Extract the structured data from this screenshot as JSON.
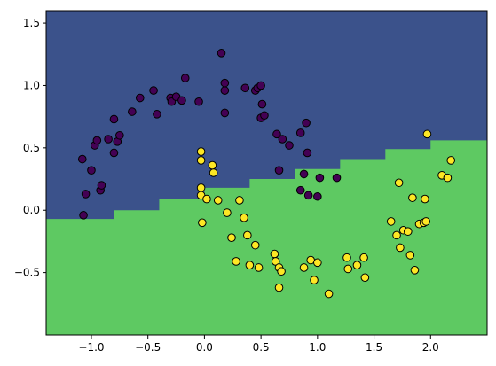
{
  "chart_data": {
    "type": "scatter",
    "title": "",
    "xlabel": "",
    "ylabel": "",
    "xlim": [
      -1.4,
      2.5
    ],
    "ylim": [
      -1.0,
      1.6
    ],
    "x_ticks": [
      -1.0,
      -0.5,
      0.0,
      0.5,
      1.0,
      1.5,
      2.0
    ],
    "x_tick_labels": [
      "−1.0",
      "−0.5",
      "0.0",
      "0.5",
      "1.0",
      "1.5",
      "2.0"
    ],
    "y_ticks": [
      -0.5,
      0.0,
      0.5,
      1.0,
      1.5
    ],
    "y_tick_labels": [
      "−0.5",
      "0.0",
      "0.5",
      "1.0",
      "1.5"
    ],
    "grid": false,
    "legend": "none",
    "decision_regions": {
      "description_of_boundary": "stepped line separating two class regions",
      "boundary": [
        [
          -1.4,
          -0.07
        ],
        [
          -1.1,
          -0.07
        ],
        [
          -0.8,
          0.0
        ],
        [
          -0.4,
          0.09
        ],
        [
          0.0,
          0.18
        ],
        [
          0.4,
          0.25
        ],
        [
          0.8,
          0.33
        ],
        [
          1.2,
          0.41
        ],
        [
          1.6,
          0.49
        ],
        [
          2.0,
          0.56
        ],
        [
          2.5,
          0.62
        ]
      ],
      "upper_color": "#3b528b",
      "lower_color": "#5ec962"
    },
    "series": [
      {
        "color": "#440154",
        "points": [
          [
            -1.08,
            0.41
          ],
          [
            -1.05,
            0.13
          ],
          [
            -1.07,
            -0.04
          ],
          [
            -1.0,
            0.32
          ],
          [
            -0.97,
            0.52
          ],
          [
            -0.95,
            0.56
          ],
          [
            -0.92,
            0.16
          ],
          [
            -0.91,
            0.2
          ],
          [
            -0.85,
            0.57
          ],
          [
            -0.8,
            0.46
          ],
          [
            -0.77,
            0.55
          ],
          [
            -0.75,
            0.6
          ],
          [
            -0.8,
            0.73
          ],
          [
            -0.64,
            0.79
          ],
          [
            -0.57,
            0.9
          ],
          [
            -0.45,
            0.96
          ],
          [
            -0.42,
            0.77
          ],
          [
            -0.3,
            0.9
          ],
          [
            -0.29,
            0.87
          ],
          [
            -0.25,
            0.91
          ],
          [
            -0.2,
            0.88
          ],
          [
            -0.17,
            1.06
          ],
          [
            -0.05,
            0.87
          ],
          [
            0.15,
            1.26
          ],
          [
            0.18,
            0.96
          ],
          [
            0.18,
            1.02
          ],
          [
            0.18,
            0.78
          ],
          [
            0.36,
            0.98
          ],
          [
            0.45,
            0.96
          ],
          [
            0.47,
            0.98
          ],
          [
            0.5,
            1.0
          ],
          [
            0.51,
            0.85
          ],
          [
            0.5,
            0.74
          ],
          [
            0.53,
            0.76
          ],
          [
            0.64,
            0.61
          ],
          [
            0.69,
            0.57
          ],
          [
            0.66,
            0.32
          ],
          [
            0.75,
            0.52
          ],
          [
            0.85,
            0.62
          ],
          [
            0.9,
            0.7
          ],
          [
            0.91,
            0.46
          ],
          [
            0.85,
            0.16
          ],
          [
            0.92,
            0.12
          ],
          [
            0.88,
            0.29
          ],
          [
            1.0,
            0.11
          ],
          [
            1.02,
            0.26
          ],
          [
            1.17,
            0.26
          ]
        ]
      },
      {
        "color": "#fde725",
        "points": [
          [
            -0.03,
            0.47
          ],
          [
            -0.03,
            0.4
          ],
          [
            -0.03,
            0.18
          ],
          [
            -0.03,
            0.12
          ],
          [
            -0.02,
            -0.1
          ],
          [
            0.02,
            0.09
          ],
          [
            0.07,
            0.36
          ],
          [
            0.08,
            0.3
          ],
          [
            0.12,
            0.08
          ],
          [
            0.2,
            -0.02
          ],
          [
            0.24,
            -0.22
          ],
          [
            0.28,
            -0.41
          ],
          [
            0.31,
            0.08
          ],
          [
            0.35,
            -0.06
          ],
          [
            0.38,
            -0.2
          ],
          [
            0.4,
            -0.44
          ],
          [
            0.45,
            -0.28
          ],
          [
            0.48,
            -0.46
          ],
          [
            0.62,
            -0.35
          ],
          [
            0.63,
            -0.41
          ],
          [
            0.66,
            -0.46
          ],
          [
            0.68,
            -0.49
          ],
          [
            0.66,
            -0.62
          ],
          [
            0.88,
            -0.46
          ],
          [
            0.94,
            -0.4
          ],
          [
            0.97,
            -0.56
          ],
          [
            1.0,
            -0.42
          ],
          [
            1.1,
            -0.67
          ],
          [
            1.26,
            -0.38
          ],
          [
            1.27,
            -0.47
          ],
          [
            1.35,
            -0.44
          ],
          [
            1.41,
            -0.38
          ],
          [
            1.42,
            -0.54
          ],
          [
            1.65,
            -0.09
          ],
          [
            1.7,
            -0.2
          ],
          [
            1.72,
            0.22
          ],
          [
            1.73,
            -0.3
          ],
          [
            1.76,
            -0.16
          ],
          [
            1.8,
            -0.17
          ],
          [
            1.82,
            -0.36
          ],
          [
            1.84,
            0.1
          ],
          [
            1.86,
            -0.48
          ],
          [
            1.9,
            -0.11
          ],
          [
            1.94,
            -0.1
          ],
          [
            1.95,
            0.09
          ],
          [
            1.96,
            -0.09
          ],
          [
            1.97,
            0.61
          ],
          [
            2.1,
            0.28
          ],
          [
            2.15,
            0.26
          ],
          [
            2.18,
            0.4
          ]
        ]
      }
    ]
  }
}
